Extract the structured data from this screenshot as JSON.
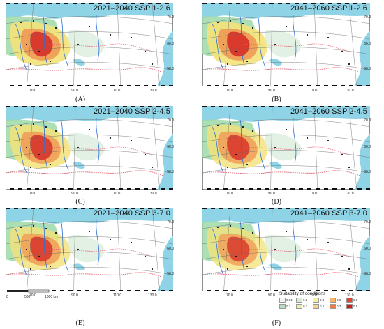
{
  "panels": [
    {
      "id": "A",
      "title": "2021–2040 SSP 1-2.6",
      "caption": "(A)",
      "intensity": 1.0
    },
    {
      "id": "B",
      "title": "2041–2060 SSP 1-2.6",
      "caption": "(B)",
      "intensity": 1.0
    },
    {
      "id": "C",
      "title": "2021–2040 SSP 2-4.5",
      "caption": "(C)",
      "intensity": 0.95
    },
    {
      "id": "D",
      "title": "2041–2060 SSP 2-4.5",
      "caption": "(D)",
      "intensity": 0.9
    },
    {
      "id": "E",
      "title": "2021–2040 SSP 3-7.0",
      "caption": "(E)",
      "intensity": 0.9
    },
    {
      "id": "F",
      "title": "2041–2060 SSP 3-7.0",
      "caption": "(F)",
      "intensity": 0.85
    }
  ],
  "axis_ticks": {
    "longitude": [
      "70.0",
      "90.0",
      "110.0",
      "130.0"
    ],
    "latitude": [
      "70.0",
      "60.0",
      "50.0"
    ]
  },
  "scale_bar": {
    "labels": [
      "0",
      "500",
      "1000 km"
    ]
  },
  "legend": {
    "title": "Suitability of conditions",
    "row1": [
      {
        "label": "0.01",
        "color": "#f4f4f4"
      },
      {
        "label": "0.2",
        "color": "#d8ebd0"
      },
      {
        "label": "0.4",
        "color": "#f3f0a8"
      },
      {
        "label": "0.6",
        "color": "#f5b36c"
      },
      {
        "label": "0.8",
        "color": "#e0462f"
      }
    ],
    "row2": [
      {
        "label": "0.1",
        "color": "#b7dcc0"
      },
      {
        "label": "0.3",
        "color": "#e8f0b0"
      },
      {
        "label": "0.5",
        "color": "#f6d28c"
      },
      {
        "label": "0.7",
        "color": "#ee7a44"
      },
      {
        "label": "0.9",
        "color": "#c81e1e"
      }
    ]
  },
  "colors": {
    "water": "#8fd3e6",
    "land": "#ffffff",
    "green": "#9fd9a8",
    "river": "#2b6fd8",
    "border": "#e05b6a",
    "grid": "#666666"
  }
}
